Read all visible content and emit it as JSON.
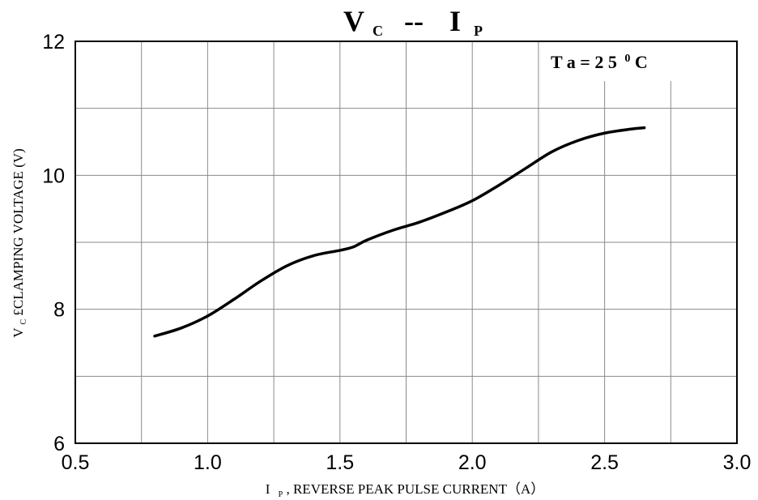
{
  "chart_data": {
    "type": "line",
    "title": {
      "main1": "V",
      "sub1": "C",
      "sep": "--",
      "main2": "I",
      "sub2": "P"
    },
    "xlabel": {
      "main": "I",
      "sub": "P",
      "rest": ", REVERSE PEAK PULSE CURRENT（A）"
    },
    "ylabel": {
      "main": "V",
      "sub": "C",
      "rest": "£­CLAMPING VOLTAGE (V)"
    },
    "annotation": {
      "text": "T a = 2 5",
      "sup": "0",
      "unit": "C"
    },
    "xlim": [
      0.5,
      3.0
    ],
    "ylim": [
      6,
      12
    ],
    "x_ticks": [
      "0.5",
      "1.0",
      "1.5",
      "2.0",
      "2.5",
      "3.0"
    ],
    "y_ticks": [
      "6",
      "8",
      "10",
      "12"
    ],
    "grid": true,
    "series": [
      {
        "color": "#000000",
        "x": [
          0.8,
          0.9,
          1.0,
          1.1,
          1.2,
          1.3,
          1.4,
          1.5,
          1.55,
          1.6,
          1.7,
          1.8,
          1.9,
          2.0,
          2.1,
          2.2,
          2.3,
          2.4,
          2.5,
          2.6,
          2.65
        ],
        "y": [
          7.6,
          7.72,
          7.9,
          8.15,
          8.42,
          8.65,
          8.8,
          8.88,
          8.93,
          9.03,
          9.18,
          9.3,
          9.45,
          9.62,
          9.85,
          10.1,
          10.35,
          10.52,
          10.63,
          10.69,
          10.71
        ]
      }
    ]
  }
}
